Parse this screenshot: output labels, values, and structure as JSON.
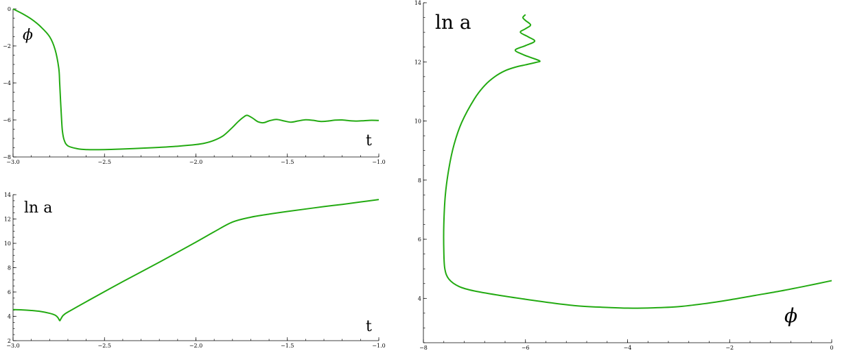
{
  "chart_data": [
    {
      "type": "line",
      "id": "phi-vs-t",
      "xlim": [
        -3.0,
        -1.0
      ],
      "ylim": [
        -8,
        0
      ],
      "x_ticks": [
        -3.0,
        -2.5,
        -2.0,
        -1.5,
        -1.0
      ],
      "x_tick_labels": [
        "−3.0",
        "−2.5",
        "−2.0",
        "−1.5",
        "−1.0"
      ],
      "y_ticks": [
        -8,
        -6,
        -4,
        -2,
        0
      ],
      "y_tick_labels": [
        "−8",
        "−6",
        "−4",
        "−2",
        "0"
      ],
      "annotations": [
        "ϕ",
        "t"
      ],
      "color": "#22aa11",
      "series": [
        {
          "x": [
            -3.0,
            -2.95,
            -2.9,
            -2.85,
            -2.8,
            -2.77,
            -2.75,
            -2.745,
            -2.74,
            -2.735,
            -2.73,
            -2.72,
            -2.7,
            -2.65,
            -2.6,
            -2.5,
            -2.4,
            -2.3,
            -2.2,
            -2.1,
            -2.0,
            -1.95,
            -1.9,
            -1.85,
            -1.8,
            -1.77,
            -1.74,
            -1.72,
            -1.69,
            -1.66,
            -1.63,
            -1.6,
            -1.56,
            -1.52,
            -1.48,
            -1.44,
            -1.4,
            -1.36,
            -1.32,
            -1.28,
            -1.24,
            -1.2,
            -1.16,
            -1.12,
            -1.08,
            -1.04,
            -1.0
          ],
          "y": [
            0.0,
            -0.25,
            -0.55,
            -0.95,
            -1.5,
            -2.2,
            -3.2,
            -4.0,
            -5.0,
            -5.9,
            -6.6,
            -7.1,
            -7.4,
            -7.55,
            -7.6,
            -7.6,
            -7.57,
            -7.53,
            -7.48,
            -7.42,
            -7.33,
            -7.25,
            -7.1,
            -6.85,
            -6.4,
            -6.1,
            -5.85,
            -5.75,
            -5.9,
            -6.1,
            -6.15,
            -6.05,
            -5.97,
            -6.05,
            -6.12,
            -6.05,
            -5.99,
            -6.02,
            -6.08,
            -6.06,
            -6.01,
            -6.0,
            -6.04,
            -6.06,
            -6.04,
            -6.02,
            -6.03
          ]
        }
      ]
    },
    {
      "type": "line",
      "id": "lna-vs-t",
      "xlim": [
        -3.0,
        -1.0
      ],
      "ylim": [
        2,
        14
      ],
      "x_ticks": [
        -3.0,
        -2.5,
        -2.0,
        -1.5,
        -1.0
      ],
      "x_tick_labels": [
        "−3.0",
        "−2.5",
        "−2.0",
        "−1.5",
        "−1.0"
      ],
      "y_ticks": [
        2,
        4,
        6,
        8,
        10,
        12,
        14
      ],
      "y_tick_labels": [
        "2",
        "4",
        "6",
        "8",
        "10",
        "12",
        "14"
      ],
      "annotations": [
        "ln a",
        "t"
      ],
      "color": "#22aa11",
      "series": [
        {
          "x": [
            -3.0,
            -2.95,
            -2.9,
            -2.85,
            -2.8,
            -2.77,
            -2.755,
            -2.745,
            -2.74,
            -2.73,
            -2.72,
            -2.7,
            -2.6,
            -2.4,
            -2.2,
            -2.0,
            -1.9,
            -1.8,
            -1.7,
            -1.6,
            -1.5,
            -1.4,
            -1.3,
            -1.2,
            -1.1,
            -1.0
          ],
          "y": [
            4.55,
            4.53,
            4.48,
            4.4,
            4.25,
            4.1,
            3.9,
            3.65,
            3.75,
            4.0,
            4.15,
            4.35,
            5.2,
            6.85,
            8.45,
            10.1,
            10.95,
            11.75,
            12.15,
            12.4,
            12.62,
            12.82,
            13.02,
            13.2,
            13.4,
            13.6
          ]
        }
      ]
    },
    {
      "type": "line",
      "id": "lna-vs-phi",
      "xlim": [
        -8,
        0
      ],
      "ylim": [
        2.5,
        14
      ],
      "x_ticks": [
        -8,
        -6,
        -4,
        -2,
        0
      ],
      "x_tick_labels": [
        "−8",
        "−6",
        "−4",
        "−2",
        "0"
      ],
      "y_ticks": [
        4,
        6,
        8,
        10,
        12,
        14
      ],
      "y_tick_labels": [
        "4",
        "6",
        "8",
        "10",
        "12",
        "14"
      ],
      "annotations": [
        "ln a",
        "ϕ"
      ],
      "color": "#22aa11",
      "series": [
        {
          "x": [
            0.0,
            -0.5,
            -1.0,
            -1.5,
            -2.0,
            -2.5,
            -3.0,
            -3.5,
            -4.0,
            -4.5,
            -5.0,
            -5.5,
            -6.0,
            -6.5,
            -7.0,
            -7.3,
            -7.5,
            -7.58,
            -7.6,
            -7.6,
            -7.57,
            -7.5,
            -7.4,
            -7.25,
            -7.0,
            -6.8,
            -6.6,
            -6.4,
            -6.2,
            -6.0,
            -5.8,
            -5.72,
            -5.9,
            -6.05,
            -6.2,
            -6.0,
            -5.82,
            -5.95,
            -6.1,
            -6.0,
            -5.9,
            -6.0,
            -6.05,
            -6.0
          ],
          "y": [
            4.6,
            4.42,
            4.25,
            4.1,
            3.95,
            3.82,
            3.72,
            3.68,
            3.67,
            3.7,
            3.75,
            3.85,
            3.97,
            4.1,
            4.25,
            4.4,
            4.65,
            5.0,
            5.6,
            6.5,
            7.5,
            8.4,
            9.2,
            9.95,
            10.75,
            11.2,
            11.5,
            11.7,
            11.82,
            11.9,
            11.98,
            12.03,
            12.15,
            12.25,
            12.4,
            12.55,
            12.7,
            12.85,
            13.0,
            13.12,
            13.25,
            13.4,
            13.5,
            13.6
          ]
        }
      ]
    }
  ]
}
